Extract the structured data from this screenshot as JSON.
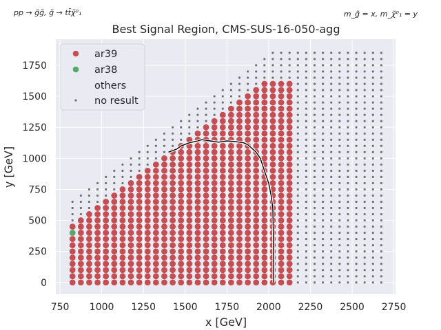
{
  "chart_data": {
    "type": "scatter",
    "title": "Best Signal Region, CMS-SUS-16-050-agg",
    "process_note": "pp → g̃g̃, g̃ → tt̄χ̃⁰₁",
    "mass_note": "m_g̃ = x, m_χ̃⁰₁ = y",
    "xlabel": "x [GeV]",
    "ylabel": "y [GeV]",
    "xlim": [
      725,
      2760
    ],
    "ylim": [
      -95,
      1960
    ],
    "xticks": [
      750,
      1000,
      1250,
      1500,
      1750,
      2000,
      2250,
      2500,
      2750
    ],
    "yticks": [
      0,
      250,
      500,
      750,
      1000,
      1250,
      1500,
      1750
    ],
    "grid": true,
    "legend_position": "top-left",
    "series": [
      {
        "name": "ar39",
        "color": "#c44e52",
        "marker": "large-dot",
        "grid_x": {
          "start": 825,
          "step": 50,
          "end": 2125
        },
        "grid_y": {
          "start": 0,
          "step": 50
        },
        "upper_bound_y_at_x": [
          [
            825,
            450
          ],
          [
            875,
            500
          ],
          [
            925,
            550
          ],
          [
            975,
            600
          ],
          [
            1025,
            650
          ],
          [
            1075,
            700
          ],
          [
            1125,
            750
          ],
          [
            1175,
            800
          ],
          [
            1225,
            850
          ],
          [
            1275,
            900
          ],
          [
            1325,
            950
          ],
          [
            1375,
            1000
          ],
          [
            1425,
            1050
          ],
          [
            1475,
            1100
          ],
          [
            1525,
            1150
          ],
          [
            1575,
            1200
          ],
          [
            1625,
            1250
          ],
          [
            1675,
            1300
          ],
          [
            1725,
            1350
          ],
          [
            1775,
            1400
          ],
          [
            1825,
            1450
          ],
          [
            1875,
            1500
          ],
          [
            1925,
            1550
          ],
          [
            1975,
            1600
          ],
          [
            2025,
            1600
          ],
          [
            2075,
            1600
          ],
          [
            2125,
            1600
          ]
        ],
        "excluded_points": [
          [
            825,
            400
          ]
        ]
      },
      {
        "name": "ar38",
        "color": "#55a868",
        "marker": "large-dot",
        "points": [
          [
            825,
            400
          ]
        ]
      },
      {
        "name": "others",
        "color": "none",
        "marker": "none",
        "points": []
      },
      {
        "name": "no result",
        "color": "#707070",
        "marker": "small-dot",
        "grid_x": {
          "start": 825,
          "step": 50,
          "end": 2675
        },
        "grid_y": {
          "start": 0,
          "step": 50
        },
        "upper_bound_y_at_x": [
          [
            825,
            650
          ],
          [
            875,
            700
          ],
          [
            925,
            750
          ],
          [
            975,
            800
          ],
          [
            1025,
            850
          ],
          [
            1075,
            900
          ],
          [
            1125,
            950
          ],
          [
            1175,
            1000
          ],
          [
            1225,
            1050
          ],
          [
            1275,
            1100
          ],
          [
            1325,
            1150
          ],
          [
            1375,
            1200
          ],
          [
            1425,
            1250
          ],
          [
            1475,
            1300
          ],
          [
            1525,
            1350
          ],
          [
            1575,
            1400
          ],
          [
            1625,
            1450
          ],
          [
            1675,
            1500
          ],
          [
            1725,
            1550
          ],
          [
            1775,
            1600
          ],
          [
            1825,
            1650
          ],
          [
            1875,
            1700
          ],
          [
            1925,
            1750
          ],
          [
            1975,
            1800
          ],
          [
            2025,
            1850
          ],
          [
            2075,
            1850
          ],
          [
            2125,
            1850
          ],
          [
            2175,
            1850
          ],
          [
            2225,
            1850
          ],
          [
            2275,
            1850
          ],
          [
            2325,
            1850
          ],
          [
            2375,
            1850
          ],
          [
            2425,
            1850
          ],
          [
            2475,
            1850
          ],
          [
            2525,
            1850
          ],
          [
            2575,
            1850
          ],
          [
            2625,
            1850
          ],
          [
            2675,
            1850
          ]
        ],
        "region_note": "shown where no ar39/ar38 point is plotted"
      }
    ],
    "exclusion_contour": {
      "color": "#000000",
      "points": [
        [
          1400,
          1050
        ],
        [
          1450,
          1075
        ],
        [
          1475,
          1100
        ],
        [
          1525,
          1125
        ],
        [
          1575,
          1140
        ],
        [
          1600,
          1150
        ],
        [
          1650,
          1140
        ],
        [
          1700,
          1130
        ],
        [
          1750,
          1140
        ],
        [
          1800,
          1135
        ],
        [
          1850,
          1125
        ],
        [
          1875,
          1110
        ],
        [
          1900,
          1080
        ],
        [
          1925,
          1050
        ],
        [
          1950,
          1000
        ],
        [
          1975,
          900
        ],
        [
          2000,
          800
        ],
        [
          2015,
          700
        ],
        [
          2025,
          600
        ],
        [
          2028,
          400
        ],
        [
          2030,
          200
        ],
        [
          2030,
          0
        ]
      ]
    }
  },
  "colors": {
    "background": "#eaeaf2",
    "grid": "#ffffff",
    "text": "#262626"
  }
}
